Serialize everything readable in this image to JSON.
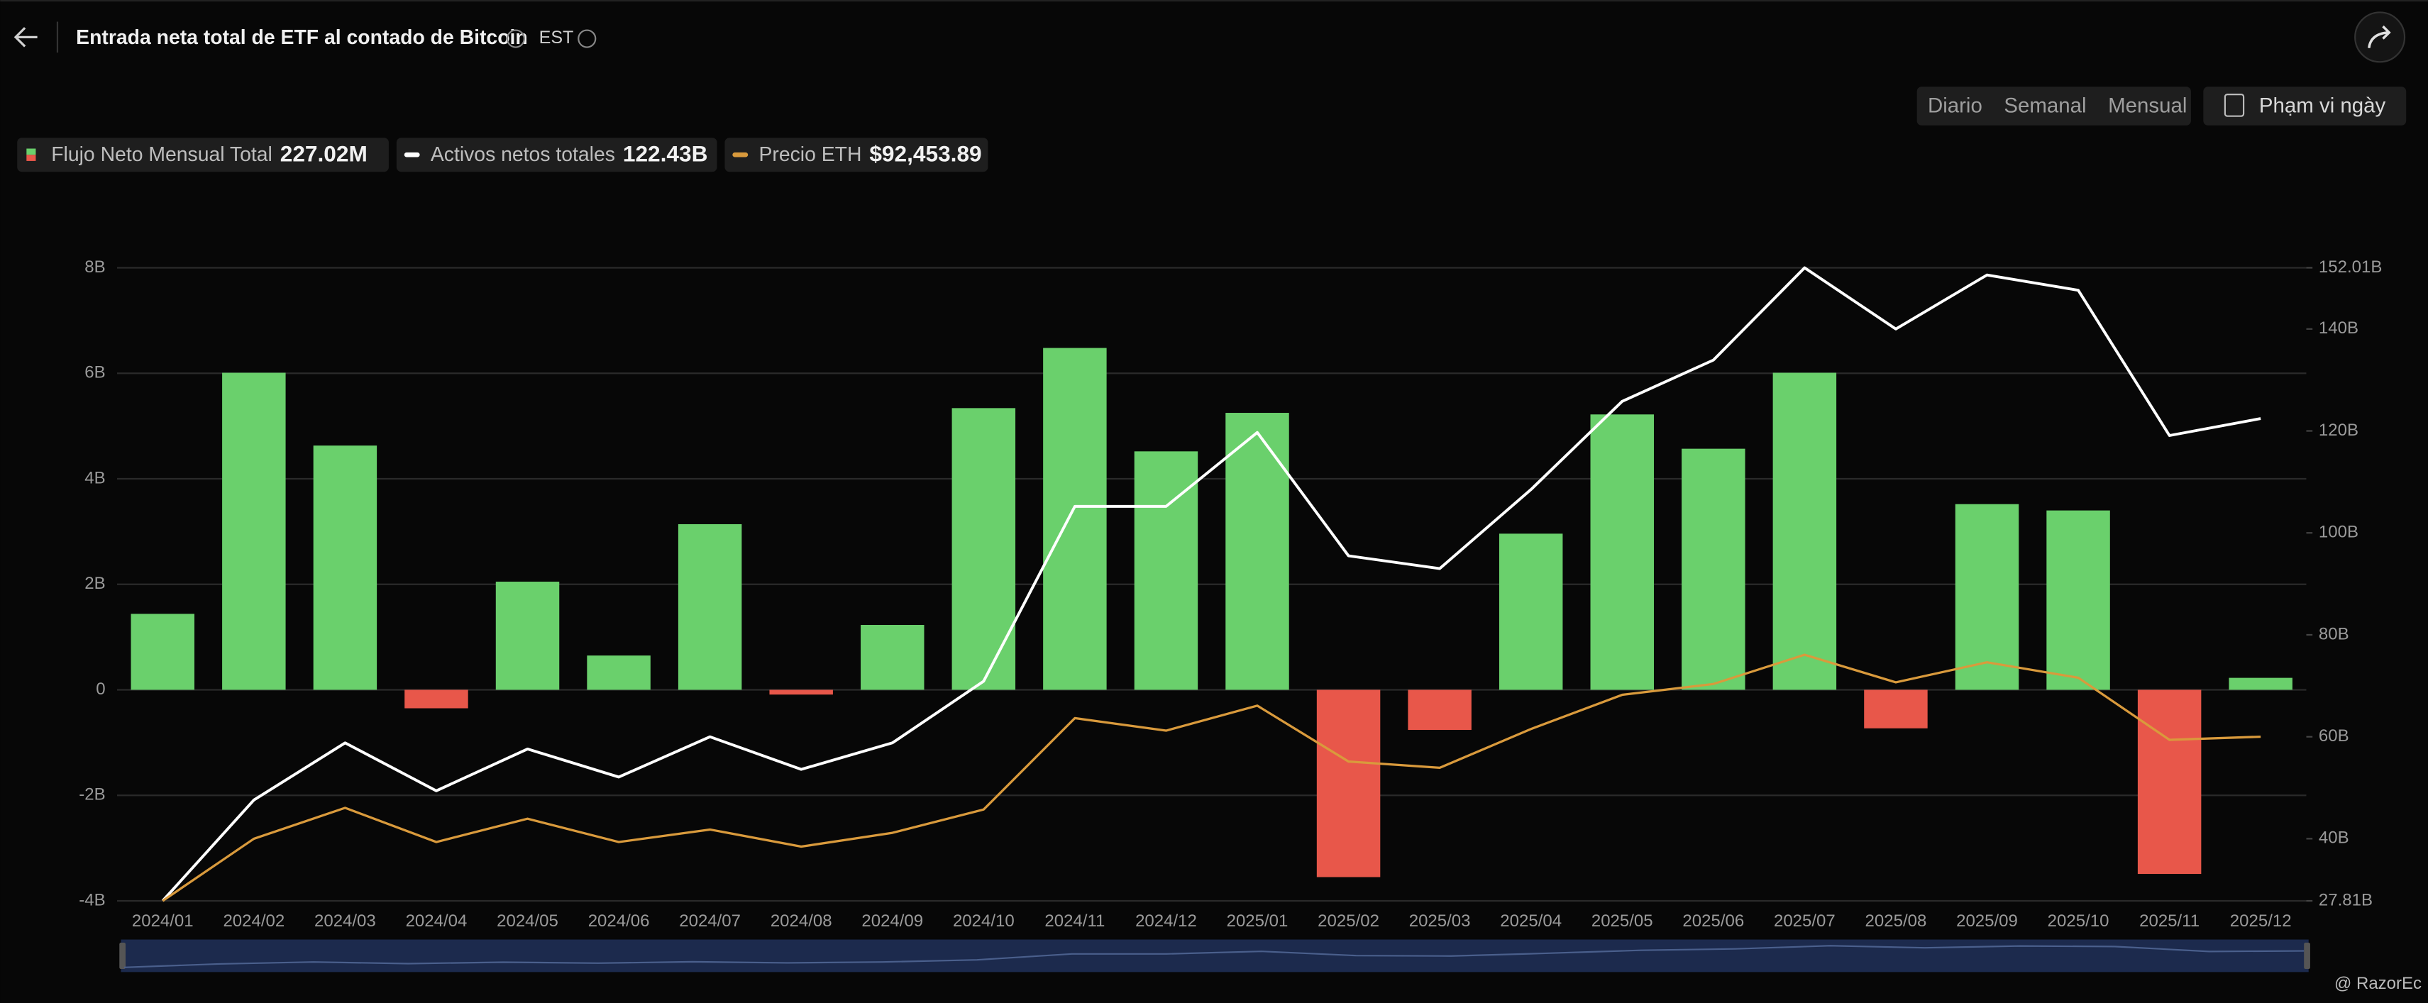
{
  "header": {
    "title": "Entrada neta total de ETF al contado de Bitcoin",
    "timezone": "EST"
  },
  "controls": [
    "Diario",
    "Semanal",
    "Mensual"
  ],
  "active_control": 2,
  "date_range": "Phạm vi ngày",
  "watermark": "@ RazorEc",
  "chart_data": {
    "type": "bar",
    "categories": [
      "2024/01",
      "2024/02",
      "2024/03",
      "2024/04",
      "2024/05",
      "2024/06",
      "2024/07",
      "2024/08",
      "2024/09",
      "2024/10",
      "2024/11",
      "2024/12",
      "2025/01",
      "2025/02",
      "2025/03",
      "2025/04",
      "2025/05",
      "2025/06",
      "2025/07",
      "2025/08",
      "2025/09",
      "2025/10",
      "2025/11",
      "2025/12"
    ],
    "series": [
      {
        "name": "Flujo Neto Mensual Total",
        "latest": "227.02M",
        "type": "bar",
        "color": "#6ad06c",
        "negative_color": "#e8574a",
        "values": [
          1.44,
          6.01,
          4.63,
          -0.35,
          2.05,
          0.65,
          3.14,
          -0.09,
          1.23,
          5.34,
          6.48,
          4.52,
          5.25,
          -3.55,
          -0.76,
          2.96,
          5.22,
          4.57,
          6.01,
          -0.73,
          3.52,
          3.4,
          -3.49,
          0.227
        ]
      },
      {
        "name": "Activos netos totales",
        "latest": "122.43B",
        "type": "line",
        "axis": "y2",
        "color": "#ffffff",
        "values": [
          27.81,
          47.6,
          58.8,
          49.4,
          57.6,
          52.1,
          60.0,
          53.6,
          58.8,
          70.9,
          105.2,
          105.2,
          119.7,
          95.5,
          93.0,
          108.5,
          125.8,
          133.9,
          152.01,
          140.0,
          150.6,
          147.6,
          119.1,
          122.43
        ]
      },
      {
        "name": "Precio ETH",
        "latest": "$92,453.89",
        "type": "line",
        "color": "#d99a3c",
        "values": [
          42500,
          61400,
          70800,
          60400,
          67500,
          60400,
          64200,
          59000,
          63200,
          70300,
          98100,
          94300,
          101900,
          84900,
          83000,
          94800,
          105200,
          108500,
          117400,
          109000,
          115100,
          110400,
          91500,
          92453.89
        ]
      }
    ],
    "ylim": [
      -4,
      8
    ],
    "yticks": [
      {
        "value": -4,
        "label": "-4B"
      },
      {
        "value": -2,
        "label": "-2B"
      },
      {
        "value": 0,
        "label": "0"
      },
      {
        "value": 2,
        "label": "2B"
      },
      {
        "value": 4,
        "label": "4B"
      },
      {
        "value": 6,
        "label": "6B"
      },
      {
        "value": 8,
        "label": "8B"
      }
    ],
    "y2lim": [
      27.81,
      152.01
    ],
    "y2ticks": [
      {
        "value": 27.81,
        "label": "27.81B"
      },
      {
        "value": 40,
        "label": "40B"
      },
      {
        "value": 60,
        "label": "60B"
      },
      {
        "value": 80,
        "label": "80B"
      },
      {
        "value": 100,
        "label": "100B"
      },
      {
        "value": 120,
        "label": "120B"
      },
      {
        "value": 140,
        "label": "140B"
      },
      {
        "value": 152.01,
        "label": "152.01B"
      }
    ],
    "grid": true
  }
}
